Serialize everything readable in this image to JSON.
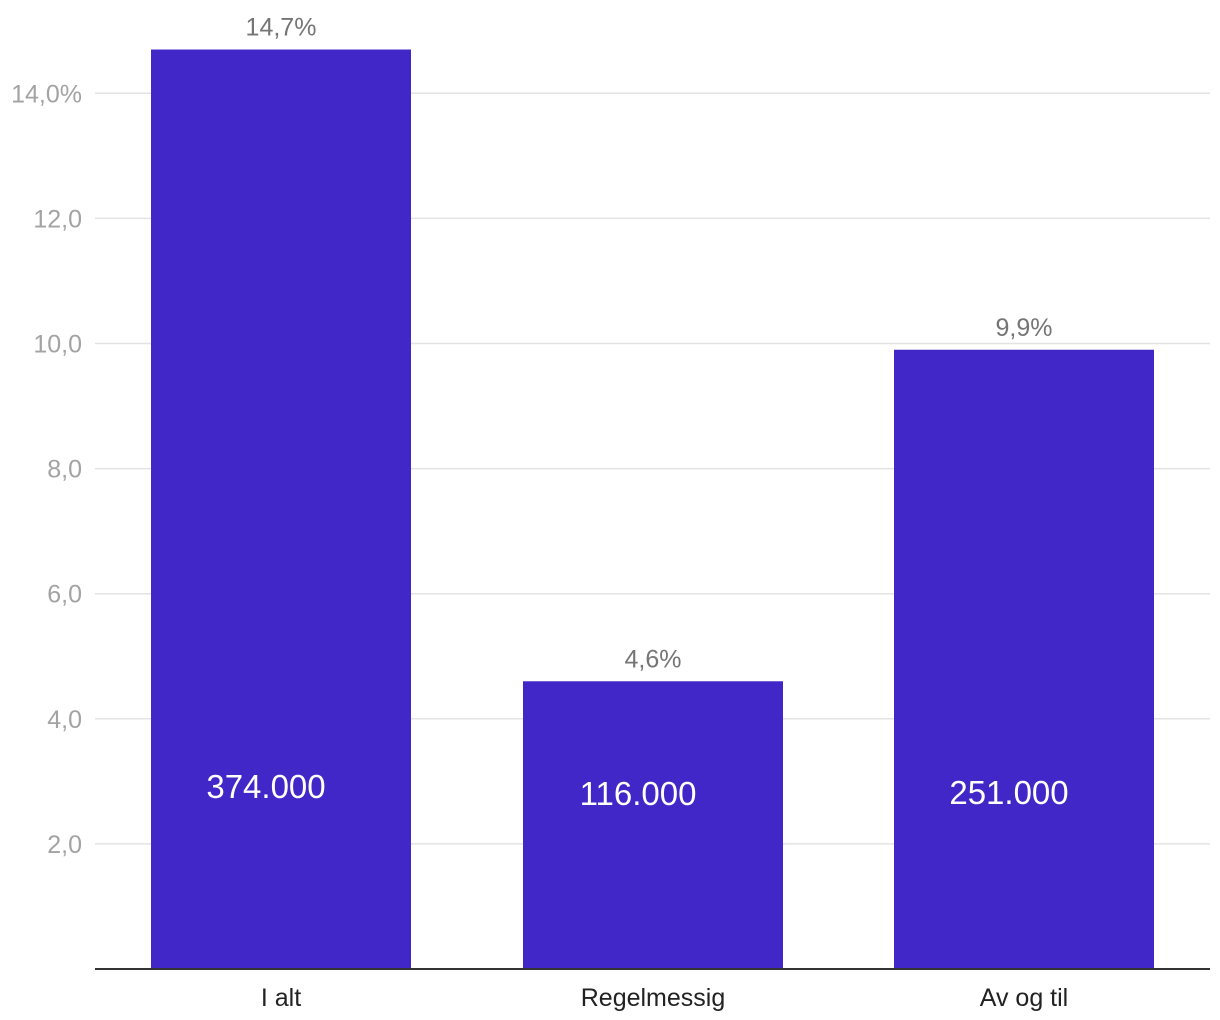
{
  "chart_data": {
    "type": "bar",
    "categories": [
      "I alt",
      "Regelmessig",
      "Av og til"
    ],
    "values": [
      14.7,
      4.6,
      9.9
    ],
    "value_labels": [
      "14,7%",
      "4,6%",
      "9,9%"
    ],
    "inner_labels": [
      "374.000",
      "116.000",
      "251.000"
    ],
    "y_ticks": [
      {
        "value": 2,
        "label": "2,0"
      },
      {
        "value": 4,
        "label": "4,0"
      },
      {
        "value": 6,
        "label": "6,0"
      },
      {
        "value": 8,
        "label": "8,0"
      },
      {
        "value": 10,
        "label": "10,0"
      },
      {
        "value": 12,
        "label": "12,0"
      },
      {
        "value": 14,
        "label": "14,0%"
      }
    ],
    "ylim": [
      0,
      15.5
    ],
    "grid": true,
    "title": "",
    "xlabel": "",
    "ylabel": "",
    "bar_color": "#4227c8"
  }
}
